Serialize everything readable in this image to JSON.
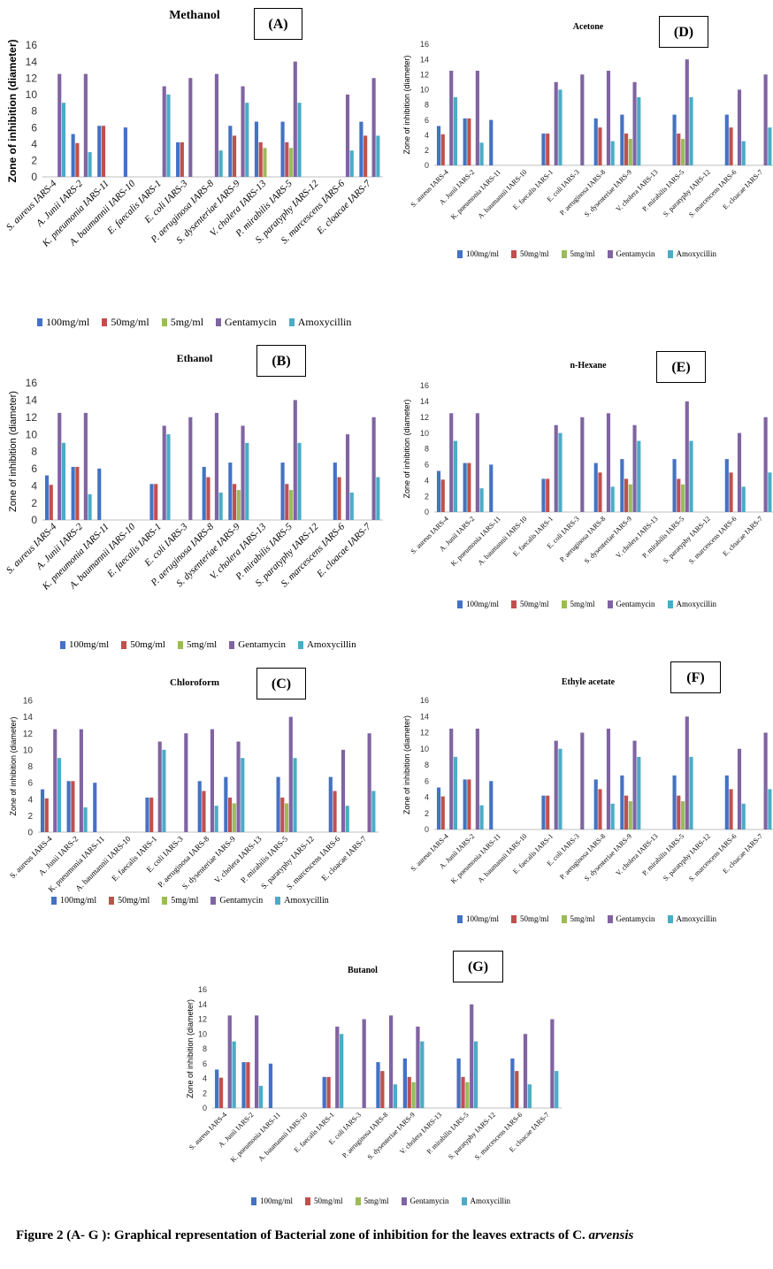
{
  "figure_caption": {
    "text": "Figure 2 (A- G ): Graphical representation of Bacterial zone  of inhibition for the leaves extracts of C.",
    "species": "arvensis"
  },
  "colors": {
    "100mg/ml": "#4472C4",
    "50mg/ml": "#C0504D",
    "5mg/ml": "#9BBB59",
    "Gentamycin": "#8064A2",
    "Amoxycillin": "#4BACC6"
  },
  "chart_data": [
    {
      "type": "bar",
      "tag": "(A)",
      "title": "Methanol",
      "ylabel": "Zone of inhibition (diameter)",
      "ylim": [
        0,
        16
      ],
      "yticks": [
        0,
        2,
        4,
        6,
        8,
        10,
        12,
        14,
        16
      ],
      "categories": [
        "S. aureus IARS-4",
        "A. Junii IARS-2",
        "K. pneumonia IARS-11",
        "A. baumannii IARS-10",
        "E. faecalis IARS-1",
        "E. coli IARS-3",
        "P. aeruginosa IARS-8",
        "S. dysenteriae IARS-9",
        "V. cholera IARS-13",
        "P. mirabilis IARS-5",
        "S. paratyphy IARS-12",
        "S. marcescens IARS-6",
        "E. cloacae IARS-7"
      ],
      "legend": [
        "100mg/ml",
        "50mg/ml",
        "5mg/ml",
        "Gentamycin",
        "Amoxycillin"
      ],
      "series": [
        {
          "name": "100mg/ml",
          "values": [
            0,
            5.2,
            6.2,
            6,
            0,
            4.2,
            0,
            6.2,
            6.7,
            6.7,
            0,
            0,
            6.7
          ]
        },
        {
          "name": "50mg/ml",
          "values": [
            0,
            4.1,
            6.2,
            0,
            0,
            4.2,
            0,
            5,
            4.2,
            4.2,
            0,
            0,
            5
          ]
        },
        {
          "name": "5mg/ml",
          "values": [
            0,
            0,
            0,
            0,
            0,
            0,
            0,
            0,
            3.5,
            3.5,
            0,
            0,
            0
          ]
        },
        {
          "name": "Gentamycin",
          "values": [
            12.5,
            12.5,
            0,
            0,
            11,
            12,
            12.5,
            11,
            0,
            14,
            0,
            10,
            12
          ]
        },
        {
          "name": "Amoxycillin",
          "values": [
            9,
            3,
            0,
            0,
            10,
            0,
            3.2,
            9,
            0,
            9,
            0,
            3.2,
            5
          ]
        }
      ]
    },
    {
      "type": "bar",
      "tag": "(B)",
      "title": "Ethanol",
      "ylabel": "Zone of inhibition (diameter)",
      "ylim": [
        0,
        16
      ],
      "yticks": [
        0,
        2,
        4,
        6,
        8,
        10,
        12,
        14,
        16
      ],
      "categories": [
        "S. aureus IARS-4",
        "A. Junii IARS-2",
        "K. pneumonia IARS-11",
        "A. baumannii IARS-10",
        "E. faecalis IARS-1",
        "E. coli IARS-3",
        "P. aeruginosa IARS-8",
        "S. dysenteriae IARS-9",
        "V. cholera IARS-13",
        "P. mirabilis IARS-5",
        "S. paratyphy IARS-12",
        "S. marcescens IARS-6",
        "E. cloacae IARS-7"
      ],
      "legend": [
        "100mg/ml",
        "50mg/ml",
        "5mg/ml",
        "Gentamycin",
        "Amoxycillin"
      ],
      "series": [
        {
          "name": "100mg/ml",
          "values": [
            5.2,
            6.2,
            6,
            0,
            4.2,
            0,
            6.2,
            6.7,
            0,
            6.7,
            0,
            6.7,
            0
          ]
        },
        {
          "name": "50mg/ml",
          "values": [
            4.1,
            6.2,
            0,
            0,
            4.2,
            0,
            5,
            4.2,
            0,
            4.2,
            0,
            5,
            0
          ]
        },
        {
          "name": "5mg/ml",
          "values": [
            0,
            0,
            0,
            0,
            0,
            0,
            0,
            3.5,
            0,
            3.5,
            0,
            0,
            0
          ]
        },
        {
          "name": "Gentamycin",
          "values": [
            12.5,
            12.5,
            0,
            0,
            11,
            12,
            12.5,
            11,
            0,
            14,
            0,
            10,
            12
          ]
        },
        {
          "name": "Amoxycillin",
          "values": [
            9,
            3,
            0,
            0,
            10,
            0,
            3.2,
            9,
            0,
            9,
            0,
            3.2,
            5
          ]
        }
      ]
    },
    {
      "type": "bar",
      "tag": "(C)",
      "title": "Chloroform",
      "ylabel": "Zone of inhibition (diameter)",
      "ylim": [
        0,
        16
      ],
      "yticks": [
        0,
        2,
        4,
        6,
        8,
        10,
        12,
        14,
        16
      ],
      "categories": [
        "S. aureus IARS-4",
        "A. Junii IARS-2",
        "K. pneumonia IARS-11",
        "A. baumannii IARS-10",
        "E. faecalis IARS-1",
        "E. coli IARS-3",
        "P. aeruginosa IARS-8",
        "S. dysenteriae IARS-9",
        "V. cholera IARS-13",
        "P. mirabilis IARS-5",
        "S. paratyphy IARS-12",
        "S. marcescens IARS-6",
        "E. cloacae IARS-7"
      ],
      "legend": [
        "100mg/ml",
        "50mg/ml",
        "5mg/ml",
        "Gentamycin",
        "Amoxycillin"
      ],
      "series": [
        {
          "name": "100mg/ml",
          "values": [
            5.2,
            6.2,
            6,
            0,
            4.2,
            0,
            6.2,
            6.7,
            0,
            6.7,
            0,
            6.7,
            0
          ]
        },
        {
          "name": "50mg/ml",
          "values": [
            4.1,
            6.2,
            0,
            0,
            4.2,
            0,
            5,
            4.2,
            0,
            4.2,
            0,
            5,
            0
          ]
        },
        {
          "name": "5mg/ml",
          "values": [
            0,
            0,
            0,
            0,
            0,
            0,
            0,
            3.5,
            0,
            3.5,
            0,
            0,
            0
          ]
        },
        {
          "name": "Gentamycin",
          "values": [
            12.5,
            12.5,
            0,
            0,
            11,
            12,
            12.5,
            11,
            0,
            14,
            0,
            10,
            12
          ]
        },
        {
          "name": "Amoxycillin",
          "values": [
            9,
            3,
            0,
            0,
            10,
            0,
            3.2,
            9,
            0,
            9,
            0,
            3.2,
            5
          ]
        }
      ]
    },
    {
      "type": "bar",
      "tag": "(D)",
      "title": "Acetone",
      "ylabel": "Zone of inhibition (diameter)",
      "ylim": [
        0,
        16
      ],
      "yticks": [
        0,
        2,
        4,
        6,
        8,
        10,
        12,
        14,
        16
      ],
      "categories": [
        "S. aureus IARS-4",
        "A. Junii IARS-2",
        "K. pneumonia IARS-11",
        "A. baumannii IARS-10",
        "E. faecalis IARS-1",
        "E. coli IARS-3",
        "P. aeruginosa IARS-8",
        "S. dysenteriae IARS-9",
        "V. cholera IARS-13",
        "P. mirabilis IARS-5",
        "S. paratyphy IARS-12",
        "S. marcescens IARS-6",
        "E. cloacae IARS-7"
      ],
      "legend": [
        "100mg/ml",
        "50mg/ml",
        "5mg/ml",
        "Gentamycin",
        "Amoxycillin"
      ],
      "series": [
        {
          "name": "100mg/ml",
          "values": [
            5.2,
            6.2,
            6,
            0,
            4.2,
            0,
            6.2,
            6.7,
            0,
            6.7,
            0,
            6.7,
            0
          ]
        },
        {
          "name": "50mg/ml",
          "values": [
            4.1,
            6.2,
            0,
            0,
            4.2,
            0,
            5,
            4.2,
            0,
            4.2,
            0,
            5,
            0
          ]
        },
        {
          "name": "5mg/ml",
          "values": [
            0,
            0,
            0,
            0,
            0,
            0,
            0,
            3.5,
            0,
            3.5,
            0,
            0,
            0
          ]
        },
        {
          "name": "Gentamycin",
          "values": [
            12.5,
            12.5,
            0,
            0,
            11,
            12,
            12.5,
            11,
            0,
            14,
            0,
            10,
            12
          ]
        },
        {
          "name": "Amoxycillin",
          "values": [
            9,
            3,
            0,
            0,
            10,
            0,
            3.2,
            9,
            0,
            9,
            0,
            3.2,
            5
          ]
        }
      ]
    },
    {
      "type": "bar",
      "tag": "(E)",
      "title": "n-Hexane",
      "ylabel": "Zone of inhibition (diameter)",
      "ylim": [
        0,
        16
      ],
      "yticks": [
        0,
        2,
        4,
        6,
        8,
        10,
        12,
        14,
        16
      ],
      "categories": [
        "S. aureus IARS-4",
        "A. Junii IARS-2",
        "K. pneumonia IARS-11",
        "A. baumannii IARS-10",
        "E. faecalis IARS-1",
        "E. coli IARS-3",
        "P. aeruginosa IARS-8",
        "S. dysenteriae IARS-9",
        "V. cholera IARS-13",
        "P. mirabilis IARS-5",
        "S. paratyphy IARS-12",
        "S. marcescens IARS-6",
        "E. cloacae IARS-7"
      ],
      "legend": [
        "100mg/ml",
        "50mg/ml",
        "5mg/ml",
        "Gentamycin",
        "Amoxycillin"
      ],
      "series": [
        {
          "name": "100mg/ml",
          "values": [
            5.2,
            6.2,
            6,
            0,
            4.2,
            0,
            6.2,
            6.7,
            0,
            6.7,
            0,
            6.7,
            0
          ]
        },
        {
          "name": "50mg/ml",
          "values": [
            4.1,
            6.2,
            0,
            0,
            4.2,
            0,
            5,
            4.2,
            0,
            4.2,
            0,
            5,
            0
          ]
        },
        {
          "name": "5mg/ml",
          "values": [
            0,
            0,
            0,
            0,
            0,
            0,
            0,
            3.5,
            0,
            3.5,
            0,
            0,
            0
          ]
        },
        {
          "name": "Gentamycin",
          "values": [
            12.5,
            12.5,
            0,
            0,
            11,
            12,
            12.5,
            11,
            0,
            14,
            0,
            10,
            12
          ]
        },
        {
          "name": "Amoxycillin",
          "values": [
            9,
            3,
            0,
            0,
            10,
            0,
            3.2,
            9,
            0,
            9,
            0,
            3.2,
            5
          ]
        }
      ]
    },
    {
      "type": "bar",
      "tag": "(F)",
      "title": "Ethyle acetate",
      "ylabel": "Zone of inhibition (diameter)",
      "ylim": [
        0,
        16
      ],
      "yticks": [
        0,
        2,
        4,
        6,
        8,
        10,
        12,
        14,
        16
      ],
      "categories": [
        "S. aureus IARS-4",
        "A. Junii IARS-2",
        "K. pneumonia IARS-11",
        "A. baumannii IARS-10",
        "E. faecalis IARS-1",
        "E. coli IARS-3",
        "P. aeruginosa IARS-8",
        "S. dysenteriae IARS-9",
        "V. cholera IARS-13",
        "P. mirabilis IARS-5",
        "S. paratyphy IARS-12",
        "S. marcescens IARS-6",
        "E. cloacae IARS-7"
      ],
      "legend": [
        "100mg/ml",
        "50mg/ml",
        "5mg/ml",
        "Gentamycin",
        "Amoxycillin"
      ],
      "series": [
        {
          "name": "100mg/ml",
          "values": [
            5.2,
            6.2,
            6,
            0,
            4.2,
            0,
            6.2,
            6.7,
            0,
            6.7,
            0,
            6.7,
            0
          ]
        },
        {
          "name": "50mg/ml",
          "values": [
            4.1,
            6.2,
            0,
            0,
            4.2,
            0,
            5,
            4.2,
            0,
            4.2,
            0,
            5,
            0
          ]
        },
        {
          "name": "5mg/ml",
          "values": [
            0,
            0,
            0,
            0,
            0,
            0,
            0,
            3.5,
            0,
            3.5,
            0,
            0,
            0
          ]
        },
        {
          "name": "Gentamycin",
          "values": [
            12.5,
            12.5,
            0,
            0,
            11,
            12,
            12.5,
            11,
            0,
            14,
            0,
            10,
            12
          ]
        },
        {
          "name": "Amoxycillin",
          "values": [
            9,
            3,
            0,
            0,
            10,
            0,
            3.2,
            9,
            0,
            9,
            0,
            3.2,
            5
          ]
        }
      ]
    },
    {
      "type": "bar",
      "tag": "(G)",
      "title": "Butanol",
      "ylabel": "Zone of inhibition (diameter)",
      "ylim": [
        0,
        16
      ],
      "yticks": [
        0,
        2,
        4,
        6,
        8,
        10,
        12,
        14,
        16
      ],
      "categories": [
        "S. aureus IARS-4",
        "A. Junii IARS-2",
        "K. pneumonia IARS-11",
        "A. baumannii IARS-10",
        "E. faecalis IARS-1",
        "E. coli IARS-3",
        "P. aeruginosa IARS-8",
        "S. dysenteriae IARS-9",
        "V. cholera IARS-13",
        "P. mirabilis IARS-5",
        "S. paratyphy IARS-12",
        "S. marcescens IARS-6",
        "E. cloacae IARS-7"
      ],
      "legend": [
        "100mg/ml",
        "50mg/ml",
        "5mg/ml",
        "Gentamycin",
        "Amoxycillin"
      ],
      "series": [
        {
          "name": "100mg/ml",
          "values": [
            5.2,
            6.2,
            6,
            0,
            4.2,
            0,
            6.2,
            6.7,
            0,
            6.7,
            0,
            6.7,
            0
          ]
        },
        {
          "name": "50mg/ml",
          "values": [
            4.1,
            6.2,
            0,
            0,
            4.2,
            0,
            5,
            4.2,
            0,
            4.2,
            0,
            5,
            0
          ]
        },
        {
          "name": "5mg/ml",
          "values": [
            0,
            0,
            0,
            0,
            0,
            0,
            0,
            3.5,
            0,
            3.5,
            0,
            0,
            0
          ]
        },
        {
          "name": "Gentamycin",
          "values": [
            12.5,
            12.5,
            0,
            0,
            11,
            12,
            12.5,
            11,
            0,
            14,
            0,
            10,
            12
          ]
        },
        {
          "name": "Amoxycillin",
          "values": [
            9,
            3,
            0,
            0,
            10,
            0,
            3.2,
            9,
            0,
            9,
            0,
            3.2,
            5
          ]
        }
      ]
    }
  ]
}
